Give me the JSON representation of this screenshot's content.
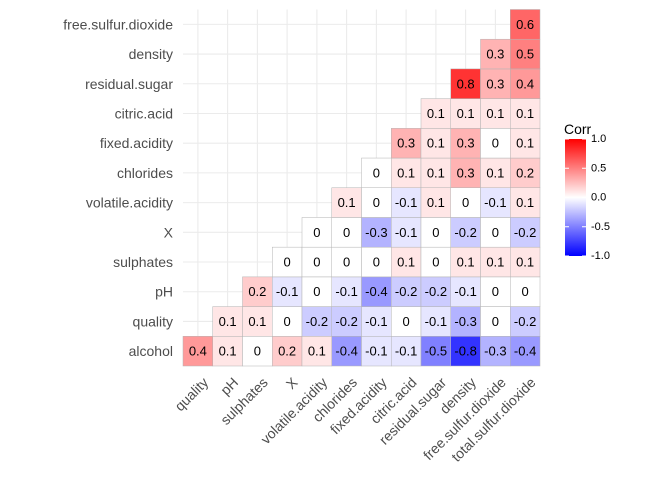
{
  "chart_data": {
    "type": "heatmap",
    "title": "",
    "xlabel": "",
    "ylabel": "",
    "x_categories": [
      "quality",
      "pH",
      "sulphates",
      "X",
      "volatile.acidity",
      "chlorides",
      "fixed.acidity",
      "citric.acid",
      "residual.sugar",
      "density",
      "free.sulfur.dioxide",
      "total.sulfur.dioxide"
    ],
    "y_categories": [
      "alcohol",
      "quality",
      "pH",
      "sulphates",
      "X",
      "volatile.acidity",
      "chlorides",
      "fixed.acidity",
      "citric.acid",
      "residual.sugar",
      "density",
      "free.sulfur.dioxide"
    ],
    "values": [
      [
        0.4,
        0.1,
        0,
        0.2,
        0.1,
        -0.4,
        -0.1,
        -0.1,
        -0.5,
        -0.8,
        -0.3,
        -0.4
      ],
      [
        null,
        0.1,
        0.1,
        0,
        -0.2,
        -0.2,
        -0.1,
        0,
        -0.1,
        -0.3,
        0,
        -0.2
      ],
      [
        null,
        null,
        0.2,
        -0.1,
        0,
        -0.1,
        -0.4,
        -0.2,
        -0.2,
        -0.1,
        0,
        0
      ],
      [
        null,
        null,
        null,
        0,
        0,
        0,
        0,
        0.1,
        0,
        0.1,
        0.1,
        0.1
      ],
      [
        null,
        null,
        null,
        null,
        0,
        0,
        -0.3,
        -0.1,
        0,
        -0.2,
        0,
        -0.2
      ],
      [
        null,
        null,
        null,
        null,
        null,
        0.1,
        0,
        -0.1,
        0.1,
        0,
        -0.1,
        0.1
      ],
      [
        null,
        null,
        null,
        null,
        null,
        null,
        0,
        0.1,
        0.1,
        0.3,
        0.1,
        0.2
      ],
      [
        null,
        null,
        null,
        null,
        null,
        null,
        null,
        0.3,
        0.1,
        0.3,
        0,
        0.1
      ],
      [
        null,
        null,
        null,
        null,
        null,
        null,
        null,
        null,
        0.1,
        0.1,
        0.1,
        0.1
      ],
      [
        null,
        null,
        null,
        null,
        null,
        null,
        null,
        null,
        null,
        0.8,
        0.3,
        0.4
      ],
      [
        null,
        null,
        null,
        null,
        null,
        null,
        null,
        null,
        null,
        null,
        0.3,
        0.5
      ],
      [
        null,
        null,
        null,
        null,
        null,
        null,
        null,
        null,
        null,
        null,
        null,
        0.6
      ]
    ],
    "legend": {
      "title": "Corr",
      "position": "right",
      "range": [
        -1,
        1
      ],
      "ticks": [
        "1.0",
        "0.5",
        "0.0",
        "-0.5",
        "-1.0"
      ],
      "tick_values": [
        1,
        0.5,
        0,
        -0.5,
        -1
      ],
      "colors": {
        "low": "#0000ff",
        "mid": "#ffffff",
        "high": "#ff0000"
      }
    },
    "grid": true,
    "colors": {
      "gridline": "#ebebeb",
      "cell_border": "#b3b3b3",
      "tick_text": "#4d4d4d"
    }
  }
}
